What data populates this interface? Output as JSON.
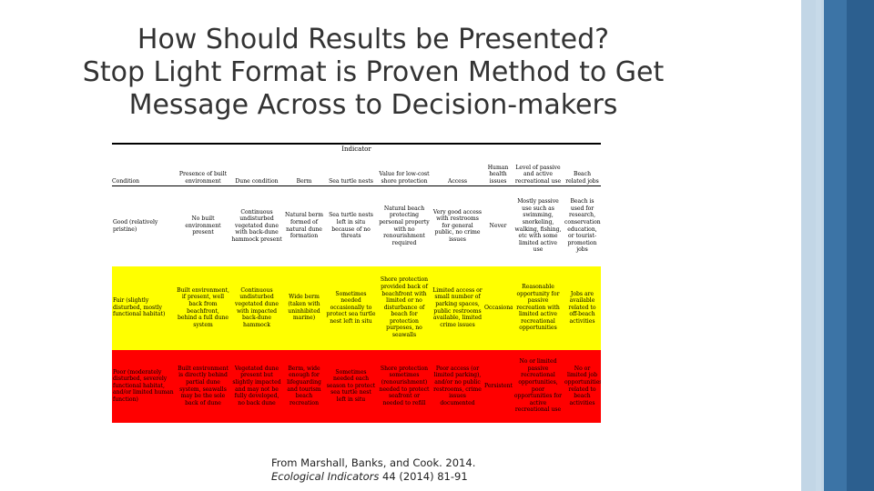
{
  "title_lines": [
    "How Should Results be Presented?",
    "Stop Light Format is Proven Method to Get",
    "Message Across to Decision-makers"
  ],
  "table": {
    "group_label": "Indicator",
    "headers": [
      "Condition",
      "Presence of built environment",
      "Dune condition",
      "Berm",
      "Sea turtle nests",
      "Value for low-cost shore protection",
      "Access",
      "Human health issues",
      "Level of passive and active recreational use",
      "Beach related jobs"
    ],
    "rows": [
      {
        "level": "good",
        "cells": [
          "Good (relatively pristine)",
          "No built environment present",
          "Continuous undisturbed vegetated dune with back-dune hammock present",
          "Natural berm formed of natural dune formation",
          "Sea turtle nests left in situ because of no threats",
          "Natural beach protecting personal property with no renourishment required",
          "Very good access with restrooms for general public, no crime issues",
          "Never",
          "Mostly passive use such as swimming, snorkeling, walking, fishing, etc with some limited active use",
          "Beach is used for research, conservation, education, or tourist-promotion jobs"
        ]
      },
      {
        "level": "fair",
        "cells": [
          "Fair (slightly disturbed, mostly functional habitat)",
          "Built environment, if present, well back from beachfront, behind a full dune system",
          "Continuous undisturbed vegetated dune with impacted back-dune hammock",
          "Wide berm (taken with uninhibited marine)",
          "Sometimes needed occasionally to protect sea turtle nest left in situ",
          "Shore protection provided back of beachfront with limited or no disturbance of beach for protection purposes, no seawalls",
          "Limited access or small number of parking spaces, public restrooms available, limited crime issues",
          "Occasional",
          "Reasonable opportunity for passive recreation with limited active recreational opportunities",
          "Jobs are available related to off-beach activities"
        ]
      },
      {
        "level": "poor",
        "cells": [
          "Poor (moderately disturbed, severely functional habitat, and/or limited human function)",
          "Built environment is directly behind partial dune system, seawalls may be the sole back of dune",
          "Vegetated dune present but slightly impacted and may not be fully developed, no back dune",
          "Berm, wide enough for lifeguarding and tourism beach recreation",
          "Sometimes needed each season to protect sea turtle nest left in situ",
          "Shore protection sometimes (renourishment) needed to protect seafront or needed to refill",
          "Poor access (or limited parking), and/or no public restrooms, crime issues documented",
          "Persistent",
          "No or limited passive recreational opportunities, poor opportunities for active recreational use",
          "No or limited job opportunities related to beach activities"
        ]
      }
    ],
    "colors": {
      "good": "#ffffff",
      "fair": "#ffff00",
      "poor": "#ff0000"
    }
  },
  "citation": {
    "authors": "From Marshall, Banks, and Cook. 2014.",
    "journal": "Ecological Indicators",
    "volume": "44",
    "details": "(2014) 81-91"
  }
}
